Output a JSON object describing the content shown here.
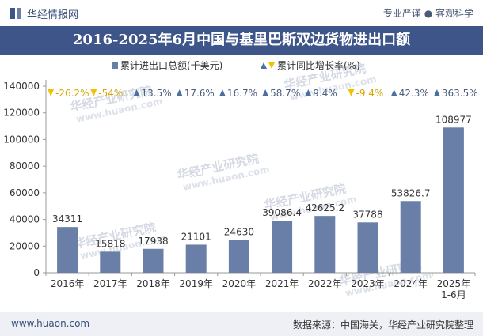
{
  "header": {
    "brand": "华经情报网",
    "tagline": "专业严谨 ● 客观科学"
  },
  "title": "2016-2025年6月中国与基里巴斯双边货物进出口额",
  "footer": {
    "website": "www.huaon.com",
    "source": "数据来源：中国海关，华经产业研究院整理"
  },
  "watermark": {
    "text": "华经产业研究院",
    "url": "www.huaon.com"
  },
  "colors": {
    "bar": "#6a7fa8",
    "arrow_up": "#4a6fa0",
    "arrow_down": "#f2c200",
    "label_up": "#4a5f80",
    "label_down": "#d4a800",
    "title_bg": "#3d5588"
  },
  "chart_data": {
    "type": "bar",
    "categories": [
      "2016年",
      "2017年",
      "2018年",
      "2019年",
      "2020年",
      "2021年",
      "2022年",
      "2023年",
      "2024年",
      "2025年\n1-6月"
    ],
    "series": [
      {
        "name": "累计进出口总额(千美元)",
        "values": [
          34311,
          15818,
          17938,
          21101,
          24630,
          39086.4,
          42625.2,
          37788,
          53826.7,
          108977
        ],
        "labels": [
          "34311",
          "15818",
          "17938",
          "21101",
          "24630",
          "39086.4",
          "42625.2",
          "37788",
          "53826.7",
          "108977"
        ]
      },
      {
        "name": "累计同比增长率(%)",
        "values": [
          -26.2,
          -54,
          13.5,
          17.6,
          16.7,
          58.7,
          9.4,
          -9.4,
          42.3,
          363.5
        ],
        "labels": [
          "-26.2%",
          "-54%",
          "13.5%",
          "17.6%",
          "16.7%",
          "58.7%",
          "9.4%",
          "-9.4%",
          "42.3%",
          "363.5%"
        ]
      }
    ],
    "yticks": [
      0,
      20000,
      40000,
      60000,
      80000,
      100000,
      120000,
      140000
    ],
    "ylim": [
      0,
      140000
    ],
    "legend": [
      "累计进出口总额(千美元)",
      "累计同比增长率(%)"
    ],
    "legend_position": "top"
  }
}
